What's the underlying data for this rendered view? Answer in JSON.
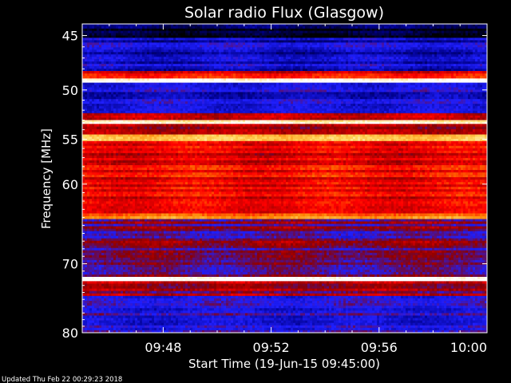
{
  "chart_data": {
    "type": "heatmap",
    "title": "Solar radio Flux (Glasgow)",
    "xlabel": "Start Time (19-Jun-15 09:45:00)",
    "ylabel": "Frequency [MHz]",
    "xlim": [
      "09:45",
      "10:00"
    ],
    "ylim": [
      44,
      80
    ],
    "y_scale": "log",
    "y_inverted": true,
    "x_ticks": [
      "09:48",
      "09:52",
      "09:56",
      "10:00"
    ],
    "y_ticks": [
      45,
      50,
      55,
      60,
      70,
      80
    ],
    "colormap": [
      "#000000",
      "#00008b",
      "#1f1fff",
      "#8b0000",
      "#ff0000",
      "#ff8000",
      "#ffd860",
      "#ffffff"
    ],
    "bands": [
      {
        "f_from": 44.0,
        "f_to": 45.2,
        "level": 0.05
      },
      {
        "f_from": 45.2,
        "f_to": 48.2,
        "level": 0.22
      },
      {
        "f_from": 48.2,
        "f_to": 48.9,
        "level": 0.55
      },
      {
        "f_from": 48.9,
        "f_to": 49.3,
        "level": 0.98
      },
      {
        "f_from": 49.3,
        "f_to": 52.3,
        "level": 0.25
      },
      {
        "f_from": 52.3,
        "f_to": 53.0,
        "level": 0.5
      },
      {
        "f_from": 53.0,
        "f_to": 53.4,
        "level": 0.95
      },
      {
        "f_from": 53.4,
        "f_to": 54.5,
        "level": 0.45
      },
      {
        "f_from": 54.5,
        "f_to": 55.2,
        "level": 0.82
      },
      {
        "f_from": 55.2,
        "f_to": 63.5,
        "level": 0.55
      },
      {
        "f_from": 63.5,
        "f_to": 64.2,
        "level": 0.72
      },
      {
        "f_from": 64.2,
        "f_to": 71.8,
        "level": 0.38
      },
      {
        "f_from": 71.8,
        "f_to": 72.4,
        "level": 0.98
      },
      {
        "f_from": 72.4,
        "f_to": 74.5,
        "level": 0.45
      },
      {
        "f_from": 74.5,
        "f_to": 80.0,
        "level": 0.3
      }
    ]
  },
  "footer": {
    "updated": "Updated Thu Feb 22 00:29:23 2018"
  }
}
